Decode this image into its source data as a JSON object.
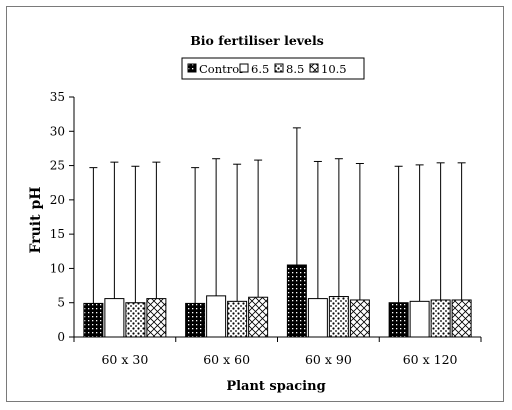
{
  "chart_data": {
    "type": "bar",
    "title": "Bio fertiliser levels",
    "xlabel": "Plant spacing",
    "ylabel": "Fruit pH",
    "ylim": [
      0,
      35
    ],
    "yticks": [
      "0",
      "5",
      "10",
      "15",
      "20",
      "25",
      "30",
      "35"
    ],
    "categories": [
      "60 x 30",
      "60 x 60",
      "60 x 90",
      "60 x 120"
    ],
    "legend_position": "top",
    "grid": false,
    "series": [
      {
        "name": "Control",
        "pattern": "dots-dense",
        "values": [
          4.9,
          4.9,
          10.5,
          5.0
        ],
        "error_upper": [
          24.7,
          24.7,
          30.5,
          24.9
        ]
      },
      {
        "name": "6.5",
        "pattern": "blank",
        "values": [
          5.6,
          6.0,
          5.6,
          5.2
        ],
        "error_upper": [
          25.5,
          26.0,
          25.6,
          25.1
        ]
      },
      {
        "name": "8.5",
        "pattern": "dots-sparse",
        "values": [
          5.0,
          5.2,
          5.9,
          5.4
        ],
        "error_upper": [
          24.9,
          25.2,
          26.0,
          25.4
        ]
      },
      {
        "name": "10.5",
        "pattern": "crosshatch",
        "values": [
          5.6,
          5.8,
          5.4,
          5.4
        ],
        "error_upper": [
          25.5,
          25.8,
          25.3,
          25.4
        ]
      }
    ]
  }
}
